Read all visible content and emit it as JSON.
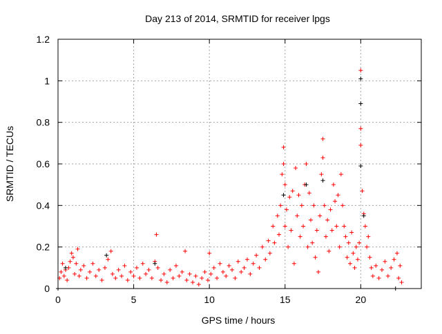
{
  "chart_data": {
    "type": "scatter",
    "title": "Day 213 of 2014, SRMTID for receiver lpgs",
    "xlabel": "GPS time / hours",
    "ylabel": "SRMTID / TECUs",
    "xlim": [
      0,
      24
    ],
    "ylim": [
      0,
      1.2
    ],
    "xticks": [
      0,
      5,
      10,
      15,
      20
    ],
    "xtick_labels": [
      "0",
      "5",
      "10",
      "15",
      "20"
    ],
    "yticks": [
      0,
      0.2,
      0.4,
      0.6,
      0.8,
      1,
      1.2
    ],
    "ytick_labels": [
      "0",
      "0.2",
      "0.4",
      "0.6",
      "0.8",
      "1",
      "1.2"
    ],
    "grid": true,
    "series": [
      {
        "name": "series-black",
        "color": "#000000",
        "marker": "+",
        "points": [
          [
            0,
            0.0
          ],
          [
            0.5,
            0.1
          ],
          [
            3.2,
            0.16
          ],
          [
            6.4,
            0.12
          ],
          [
            14.9,
            0.45
          ],
          [
            16.4,
            0.5
          ],
          [
            17.5,
            0.52
          ],
          [
            20.0,
            1.01
          ],
          [
            20.0,
            0.89
          ],
          [
            20.0,
            0.59
          ],
          [
            20.2,
            0.35
          ],
          [
            22.3,
            0.0
          ]
        ]
      },
      {
        "name": "series-red",
        "color": "#ff0000",
        "marker": "+",
        "points": [
          [
            0.0,
            0.0
          ],
          [
            0.1,
            0.05
          ],
          [
            0.2,
            0.08
          ],
          [
            0.3,
            0.12
          ],
          [
            0.4,
            0.06
          ],
          [
            0.5,
            0.09
          ],
          [
            0.6,
            0.04
          ],
          [
            0.7,
            0.1
          ],
          [
            0.8,
            0.13
          ],
          [
            0.9,
            0.17
          ],
          [
            1.0,
            0.15
          ],
          [
            1.1,
            0.07
          ],
          [
            1.2,
            0.12
          ],
          [
            1.3,
            0.19
          ],
          [
            1.4,
            0.06
          ],
          [
            1.5,
            0.09
          ],
          [
            1.7,
            0.11
          ],
          [
            1.9,
            0.05
          ],
          [
            2.1,
            0.08
          ],
          [
            2.3,
            0.12
          ],
          [
            2.5,
            0.06
          ],
          [
            2.7,
            0.09
          ],
          [
            2.9,
            0.04
          ],
          [
            3.1,
            0.1
          ],
          [
            3.3,
            0.14
          ],
          [
            3.5,
            0.18
          ],
          [
            3.6,
            0.07
          ],
          [
            3.8,
            0.05
          ],
          [
            4.0,
            0.09
          ],
          [
            4.2,
            0.06
          ],
          [
            4.4,
            0.11
          ],
          [
            4.6,
            0.04
          ],
          [
            4.8,
            0.08
          ],
          [
            5.0,
            0.06
          ],
          [
            5.2,
            0.1
          ],
          [
            5.4,
            0.05
          ],
          [
            5.6,
            0.12
          ],
          [
            5.8,
            0.07
          ],
          [
            6.0,
            0.09
          ],
          [
            6.2,
            0.05
          ],
          [
            6.4,
            0.13
          ],
          [
            6.5,
            0.26
          ],
          [
            6.6,
            0.1
          ],
          [
            6.8,
            0.04
          ],
          [
            7.0,
            0.07
          ],
          [
            7.2,
            0.03
          ],
          [
            7.4,
            0.09
          ],
          [
            7.6,
            0.05
          ],
          [
            7.8,
            0.11
          ],
          [
            8.0,
            0.06
          ],
          [
            8.2,
            0.08
          ],
          [
            8.4,
            0.18
          ],
          [
            8.5,
            0.04
          ],
          [
            8.7,
            0.07
          ],
          [
            8.9,
            0.03
          ],
          [
            9.1,
            0.06
          ],
          [
            9.3,
            0.02
          ],
          [
            9.5,
            0.05
          ],
          [
            9.7,
            0.08
          ],
          [
            9.9,
            0.04
          ],
          [
            10.0,
            0.17
          ],
          [
            10.1,
            0.07
          ],
          [
            10.3,
            0.1
          ],
          [
            10.5,
            0.05
          ],
          [
            10.7,
            0.12
          ],
          [
            10.9,
            0.08
          ],
          [
            11.1,
            0.06
          ],
          [
            11.3,
            0.11
          ],
          [
            11.5,
            0.09
          ],
          [
            11.7,
            0.05
          ],
          [
            11.9,
            0.13
          ],
          [
            12.1,
            0.08
          ],
          [
            12.3,
            0.1
          ],
          [
            12.5,
            0.14
          ],
          [
            12.7,
            0.07
          ],
          [
            12.9,
            0.12
          ],
          [
            13.1,
            0.16
          ],
          [
            13.3,
            0.1
          ],
          [
            13.5,
            0.2
          ],
          [
            13.7,
            0.14
          ],
          [
            13.9,
            0.23
          ],
          [
            14.0,
            0.17
          ],
          [
            14.2,
            0.3
          ],
          [
            14.3,
            0.22
          ],
          [
            14.5,
            0.35
          ],
          [
            14.6,
            0.26
          ],
          [
            14.7,
            0.4
          ],
          [
            14.8,
            0.55
          ],
          [
            14.9,
            0.68
          ],
          [
            14.9,
            0.6
          ],
          [
            15.0,
            0.5
          ],
          [
            15.0,
            0.3
          ],
          [
            15.1,
            0.38
          ],
          [
            15.2,
            0.2
          ],
          [
            15.3,
            0.44
          ],
          [
            15.4,
            0.28
          ],
          [
            15.5,
            0.47
          ],
          [
            15.6,
            0.12
          ],
          [
            15.7,
            0.58
          ],
          [
            15.8,
            0.35
          ],
          [
            15.9,
            0.45
          ],
          [
            16.0,
            0.25
          ],
          [
            16.1,
            0.4
          ],
          [
            16.2,
            0.3
          ],
          [
            16.3,
            0.5
          ],
          [
            16.4,
            0.6
          ],
          [
            16.5,
            0.2
          ],
          [
            16.6,
            0.46
          ],
          [
            16.7,
            0.33
          ],
          [
            16.8,
            0.22
          ],
          [
            16.9,
            0.4
          ],
          [
            17.0,
            0.15
          ],
          [
            17.1,
            0.28
          ],
          [
            17.2,
            0.08
          ],
          [
            17.3,
            0.35
          ],
          [
            17.4,
            0.55
          ],
          [
            17.5,
            0.72
          ],
          [
            17.5,
            0.63
          ],
          [
            17.6,
            0.4
          ],
          [
            17.7,
            0.25
          ],
          [
            17.8,
            0.33
          ],
          [
            17.9,
            0.18
          ],
          [
            18.0,
            0.38
          ],
          [
            18.1,
            0.28
          ],
          [
            18.2,
            0.5
          ],
          [
            18.3,
            0.42
          ],
          [
            18.4,
            0.3
          ],
          [
            18.5,
            0.45
          ],
          [
            18.6,
            0.2
          ],
          [
            18.7,
            0.55
          ],
          [
            18.8,
            0.4
          ],
          [
            18.9,
            0.3
          ],
          [
            19.0,
            0.25
          ],
          [
            19.1,
            0.15
          ],
          [
            19.2,
            0.22
          ],
          [
            19.3,
            0.12
          ],
          [
            19.4,
            0.27
          ],
          [
            19.5,
            0.17
          ],
          [
            19.6,
            0.1
          ],
          [
            19.7,
            0.2
          ],
          [
            19.8,
            0.14
          ],
          [
            19.9,
            0.22
          ],
          [
            20.0,
            1.05
          ],
          [
            20.0,
            0.77
          ],
          [
            20.0,
            0.69
          ],
          [
            20.1,
            0.47
          ],
          [
            20.2,
            0.36
          ],
          [
            20.3,
            0.3
          ],
          [
            20.4,
            0.2
          ],
          [
            20.5,
            0.25
          ],
          [
            20.6,
            0.15
          ],
          [
            20.7,
            0.1
          ],
          [
            20.8,
            0.06
          ],
          [
            21.0,
            0.11
          ],
          [
            21.2,
            0.05
          ],
          [
            21.4,
            0.09
          ],
          [
            21.6,
            0.13
          ],
          [
            21.8,
            0.06
          ],
          [
            22.0,
            0.1
          ],
          [
            22.2,
            0.14
          ],
          [
            22.4,
            0.17
          ],
          [
            22.5,
            0.05
          ],
          [
            22.6,
            0.11
          ],
          [
            22.7,
            0.03
          ]
        ]
      }
    ]
  }
}
